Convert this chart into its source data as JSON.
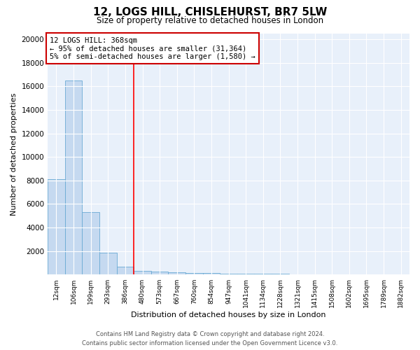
{
  "title1": "12, LOGS HILL, CHISLEHURST, BR7 5LW",
  "title2": "Size of property relative to detached houses in London",
  "xlabel": "Distribution of detached houses by size in London",
  "ylabel": "Number of detached properties",
  "bar_labels": [
    "12sqm",
    "106sqm",
    "199sqm",
    "293sqm",
    "386sqm",
    "480sqm",
    "573sqm",
    "667sqm",
    "760sqm",
    "854sqm",
    "947sqm",
    "1041sqm",
    "1134sqm",
    "1228sqm",
    "1321sqm",
    "1415sqm",
    "1508sqm",
    "1602sqm",
    "1695sqm",
    "1789sqm",
    "1882sqm"
  ],
  "bar_values": [
    8100,
    16500,
    5300,
    1850,
    700,
    320,
    250,
    200,
    160,
    140,
    110,
    90,
    70,
    60,
    50,
    40,
    35,
    30,
    25,
    20,
    15
  ],
  "bar_color": "#c5d9f0",
  "bar_edge_color": "#6aaad4",
  "background_color": "#e8f0fa",
  "fig_background": "#ffffff",
  "grid_color": "#ffffff",
  "red_line_x": 4.5,
  "annotation_line1": "12 LOGS HILL: 368sqm",
  "annotation_line2": "← 95% of detached houses are smaller (31,364)",
  "annotation_line3": "5% of semi-detached houses are larger (1,580) →",
  "annotation_box_facecolor": "#ffffff",
  "annotation_box_edgecolor": "#cc0000",
  "ylim": [
    0,
    20500
  ],
  "yticks": [
    0,
    2000,
    4000,
    6000,
    8000,
    10000,
    12000,
    14000,
    16000,
    18000,
    20000
  ],
  "footer_line1": "Contains HM Land Registry data © Crown copyright and database right 2024.",
  "footer_line2": "Contains public sector information licensed under the Open Government Licence v3.0."
}
